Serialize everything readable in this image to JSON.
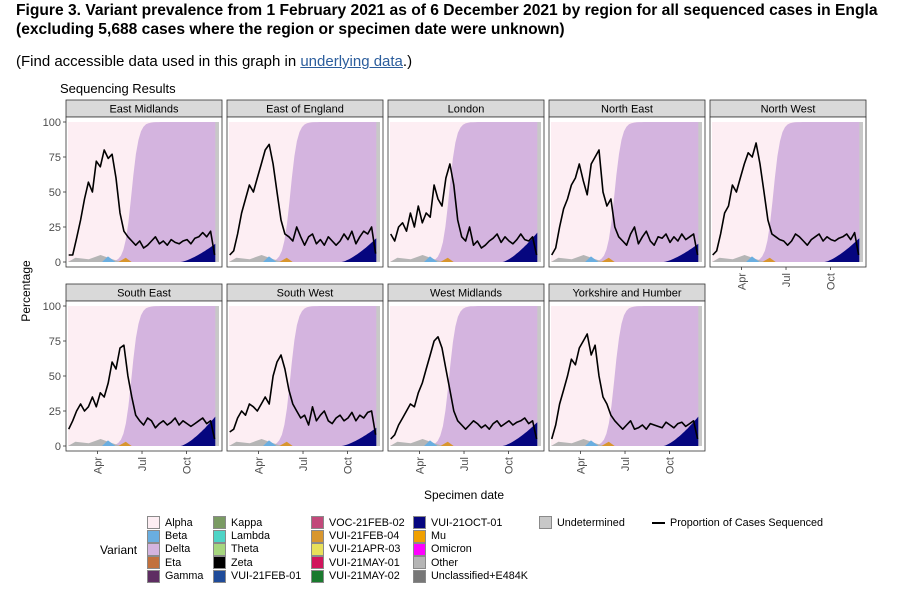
{
  "title": "Figure 3. Variant prevalence from 1 February 2021 as of 6 December 2021 by region for all sequenced cases in Engla",
  "title_line2": "(excluding 5,688 cases where the region or specimen date were unknown)",
  "note_prefix": "(Find accessible data used in this graph in ",
  "note_link": "underlying data",
  "note_suffix": ".)",
  "chart_data": {
    "type": "area",
    "title": "Sequencing Results",
    "xlabel": "Specimen date",
    "ylabel": "Percentage",
    "ylim": [
      0,
      100
    ],
    "yticks": [
      0,
      25,
      50,
      75,
      100
    ],
    "xticks": [
      "Apr",
      "Jul",
      "Oct"
    ],
    "xticks_pos_month": [
      3,
      6,
      9
    ],
    "xrange_month": [
      1,
      11.2
    ],
    "panels": [
      {
        "name": "East Midlands",
        "proportion_sequenced": [
          5,
          5,
          17,
          30,
          45,
          57,
          50,
          72,
          68,
          80,
          74,
          77,
          60,
          35,
          22,
          18,
          15,
          12,
          15,
          10,
          12,
          15,
          18,
          13,
          15,
          12,
          16,
          14,
          13,
          15,
          16,
          13,
          17,
          18,
          21,
          18,
          22,
          5
        ]
      },
      {
        "name": "East of England",
        "proportion_sequenced": [
          5,
          8,
          20,
          35,
          45,
          55,
          50,
          60,
          70,
          80,
          84,
          70,
          50,
          30,
          20,
          18,
          15,
          25,
          18,
          12,
          18,
          20,
          13,
          16,
          12,
          18,
          15,
          12,
          15,
          20,
          16,
          22,
          13,
          18,
          22,
          20,
          25,
          6
        ]
      },
      {
        "name": "London",
        "proportion_sequenced": [
          20,
          15,
          25,
          28,
          22,
          35,
          25,
          40,
          28,
          35,
          32,
          55,
          45,
          40,
          60,
          70,
          55,
          30,
          18,
          15,
          25,
          12,
          15,
          10,
          12,
          15,
          17,
          20,
          14,
          18,
          15,
          13,
          16,
          20,
          16,
          15,
          18,
          5
        ]
      },
      {
        "name": "North East",
        "proportion_sequenced": [
          5,
          10,
          25,
          38,
          45,
          55,
          60,
          70,
          58,
          48,
          70,
          75,
          80,
          50,
          40,
          45,
          25,
          18,
          15,
          12,
          20,
          25,
          13,
          18,
          22,
          15,
          12,
          18,
          17,
          20,
          14,
          18,
          15,
          20,
          16,
          18,
          20,
          5
        ]
      },
      {
        "name": "North West",
        "proportion_sequenced": [
          5,
          8,
          20,
          35,
          40,
          55,
          50,
          60,
          70,
          78,
          75,
          85,
          70,
          50,
          30,
          20,
          18,
          16,
          15,
          12,
          15,
          20,
          18,
          15,
          12,
          16,
          18,
          20,
          15,
          18,
          16,
          15,
          17,
          18,
          20,
          16,
          21,
          5
        ]
      },
      {
        "name": "South East",
        "proportion_sequenced": [
          12,
          18,
          25,
          30,
          25,
          28,
          35,
          28,
          38,
          35,
          45,
          60,
          55,
          70,
          72,
          50,
          35,
          22,
          18,
          15,
          20,
          18,
          13,
          16,
          18,
          15,
          17,
          20,
          15,
          18,
          16,
          14,
          16,
          18,
          20,
          16,
          18,
          5
        ]
      },
      {
        "name": "South West",
        "proportion_sequenced": [
          10,
          12,
          20,
          25,
          22,
          30,
          28,
          25,
          30,
          35,
          30,
          50,
          60,
          65,
          55,
          40,
          30,
          25,
          20,
          22,
          15,
          28,
          18,
          22,
          25,
          18,
          16,
          20,
          22,
          18,
          20,
          24,
          18,
          22,
          20,
          24,
          25,
          8
        ]
      },
      {
        "name": "West Midlands",
        "proportion_sequenced": [
          5,
          8,
          15,
          20,
          25,
          30,
          28,
          38,
          45,
          55,
          65,
          75,
          78,
          70,
          55,
          40,
          25,
          18,
          15,
          12,
          15,
          18,
          16,
          13,
          15,
          12,
          16,
          18,
          14,
          16,
          18,
          15,
          17,
          18,
          20,
          16,
          18,
          5
        ]
      },
      {
        "name": "Yorkshire and Humber",
        "proportion_sequenced": [
          5,
          15,
          30,
          40,
          50,
          62,
          58,
          70,
          75,
          80,
          65,
          72,
          50,
          35,
          30,
          22,
          18,
          15,
          12,
          15,
          18,
          12,
          13,
          15,
          12,
          16,
          15,
          14,
          13,
          17,
          15,
          13,
          16,
          17,
          14,
          16,
          18,
          5
        ]
      }
    ],
    "legend_title": "Variant",
    "legend": [
      {
        "name": "Alpha",
        "color": "#fdeef3"
      },
      {
        "name": "Beta",
        "color": "#6aaee0"
      },
      {
        "name": "Delta",
        "color": "#d4b4df"
      },
      {
        "name": "Eta",
        "color": "#c2703c"
      },
      {
        "name": "Gamma",
        "color": "#5e2d62"
      },
      {
        "name": "Kappa",
        "color": "#7a9b63"
      },
      {
        "name": "Lambda",
        "color": "#4ed4c6"
      },
      {
        "name": "Theta",
        "color": "#a6d67e"
      },
      {
        "name": "Zeta",
        "color": "#000000"
      },
      {
        "name": "VUI-21FEB-01",
        "color": "#1f4b99"
      },
      {
        "name": "VOC-21FEB-02",
        "color": "#c2497a"
      },
      {
        "name": "VUI-21FEB-04",
        "color": "#d8962e"
      },
      {
        "name": "VUI-21APR-03",
        "color": "#e8e05a"
      },
      {
        "name": "VUI-21MAY-01",
        "color": "#d1145c"
      },
      {
        "name": "VUI-21MAY-02",
        "color": "#1a7a2e"
      },
      {
        "name": "VUI-21OCT-01",
        "color": "#06067f"
      },
      {
        "name": "Mu",
        "color": "#f0a000"
      },
      {
        "name": "Omicron",
        "color": "#ff00ff"
      },
      {
        "name": "Other",
        "color": "#b5b5b5"
      },
      {
        "name": "Unclassified+E484K",
        "color": "#777777"
      },
      {
        "name": "Undetermined",
        "color": "#c8c8c8"
      },
      {
        "name": "Proportion of Cases Sequenced",
        "color": "#000000"
      }
    ]
  }
}
